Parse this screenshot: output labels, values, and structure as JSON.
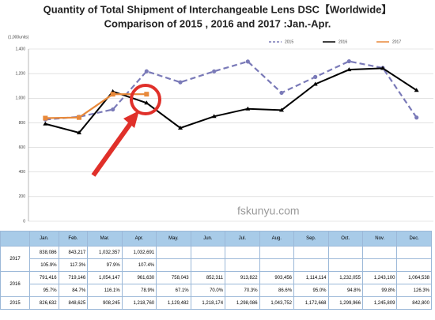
{
  "chart_data": {
    "type": "line",
    "title": "Quantity of Total Shipment of Interchangeable Lens DSC【Worldwide】",
    "subtitle": "Comparison of 2015 , 2016 and 2017 :Jan.-Apr.",
    "y_label": "(1,000units)",
    "categories": [
      "Jan.",
      "Feb.",
      "Mar.",
      "Apr.",
      "May.",
      "Jun.",
      "Jul.",
      "Aug.",
      "Sep.",
      "Oct.",
      "Nov.",
      "Dec."
    ],
    "ylim": [
      0,
      1400
    ],
    "yticks": [
      0,
      200,
      400,
      600,
      800,
      {
        "value": 1000,
        "label": "1,000"
      },
      {
        "value": 1200,
        "label": "1,200"
      },
      {
        "value": 1400,
        "label": "1,400"
      }
    ],
    "grid": true,
    "legend": "top-right",
    "series": [
      {
        "name": "2015",
        "color": "#7a7ab8",
        "dashed": true,
        "values": [
          826.632,
          848.625,
          908.245,
          1218.76,
          1129.482,
          1218.174,
          1298.086,
          1043.752,
          1172.668,
          1299.966,
          1245.809,
          842.8
        ]
      },
      {
        "name": "2016",
        "color": "#000000",
        "values": [
          791.416,
          719.146,
          1054.147,
          961.63,
          758.043,
          852.311,
          913.822,
          903.456,
          1114.114,
          1232.055,
          1243.1,
          1064.538
        ]
      },
      {
        "name": "2017",
        "color": "#e8893a",
        "values": [
          838.086,
          843.217,
          1032.357,
          1032.691,
          null,
          null,
          null,
          null,
          null,
          null,
          null,
          null
        ]
      }
    ]
  },
  "table": {
    "header": [
      "Jan.",
      "Feb.",
      "Mar.",
      "Apr.",
      "May.",
      "Jun.",
      "Jul.",
      "Aug.",
      "Sep.",
      "Oct.",
      "Nov.",
      "Dec."
    ],
    "rows": [
      {
        "label": "2017",
        "values": [
          "838,086",
          "843,217",
          "1,032,357",
          "1,032,691"
        ],
        "ratios": [
          "105.9%",
          "117.3%",
          "97.9%",
          "107.4%"
        ]
      },
      {
        "label": "2016",
        "values": [
          "791,416",
          "719,146",
          "1,054,147",
          "961,630",
          "758,043",
          "852,311",
          "913,822",
          "903,456",
          "1,114,114",
          "1,232,055",
          "1,243,100",
          "1,064,538"
        ],
        "ratios": [
          "95.7%",
          "84.7%",
          "116.1%",
          "78.9%",
          "67.1%",
          "70.0%",
          "70.3%",
          "86.6%",
          "95.0%",
          "94.8%",
          "99.8%",
          "126.3%"
        ]
      },
      {
        "label": "2015",
        "values": [
          "826,632",
          "848,625",
          "908,245",
          "1,218,760",
          "1,129,482",
          "1,218,174",
          "1,298,086",
          "1,043,752",
          "1,172,668",
          "1,299,966",
          "1,245,809",
          "842,800"
        ]
      }
    ]
  },
  "watermark": "fskunyu.com"
}
